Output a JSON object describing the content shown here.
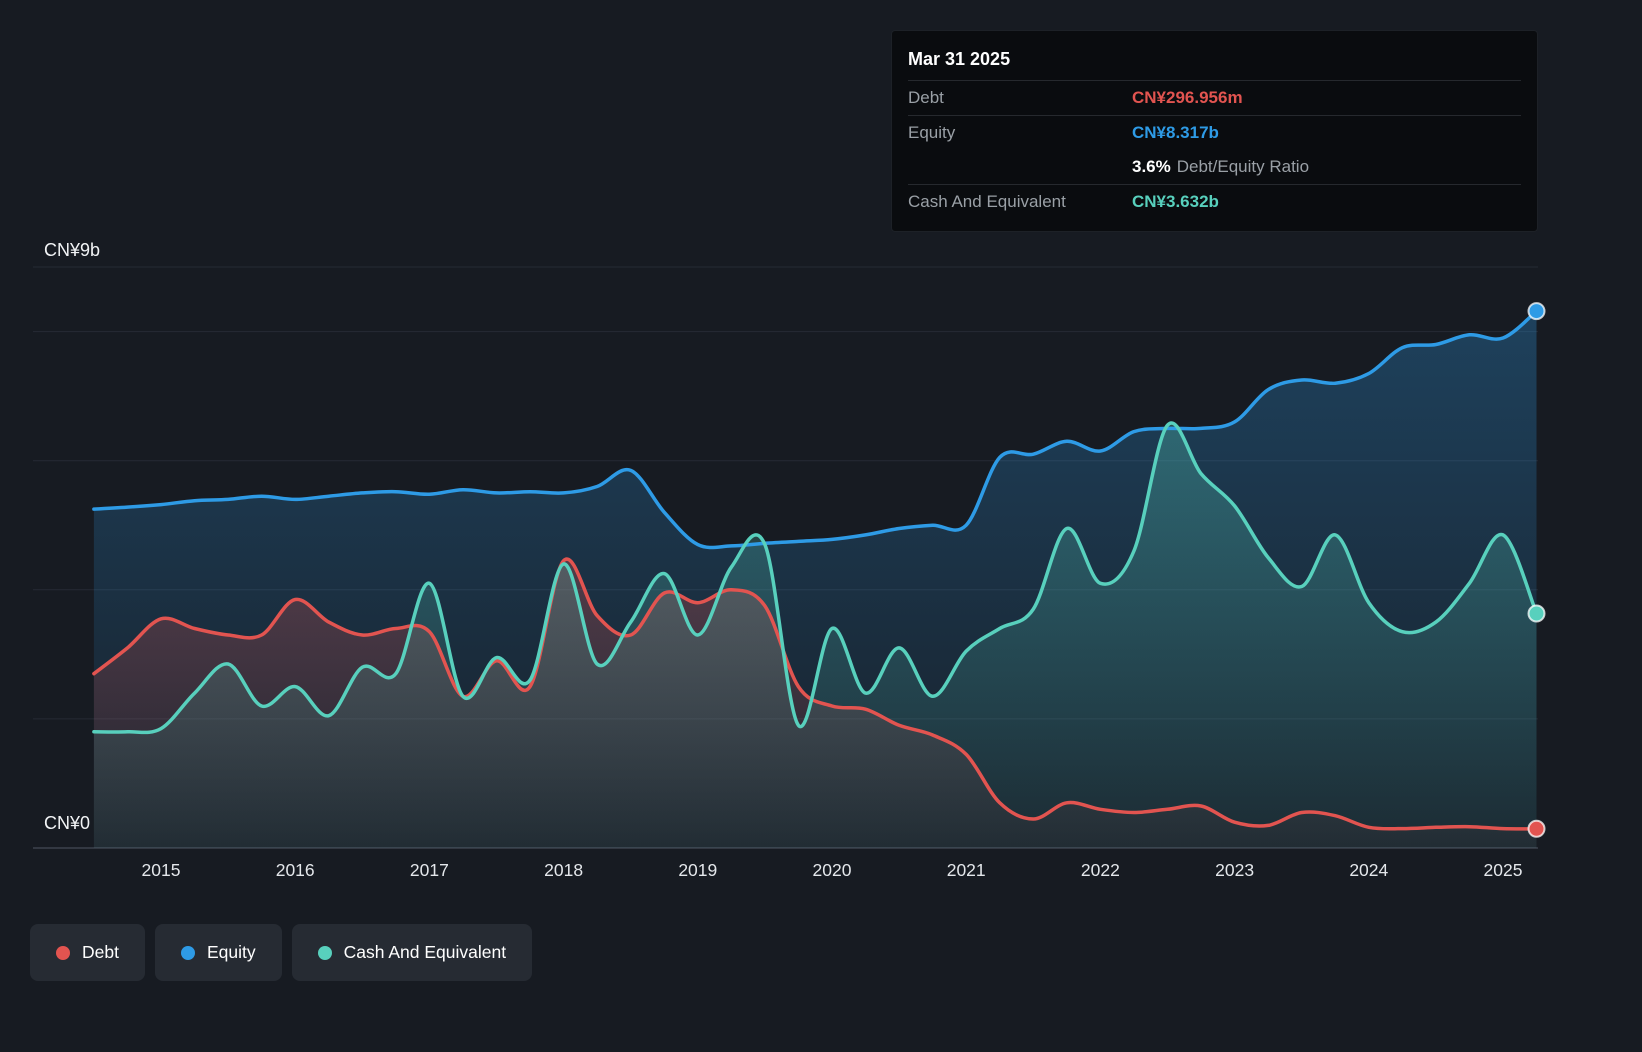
{
  "tooltip": {
    "date": "Mar 31 2025",
    "debt_label": "Debt",
    "debt_value": "CN¥296.956m",
    "equity_label": "Equity",
    "equity_value": "CN¥8.317b",
    "ratio_value": "3.6%",
    "ratio_label": "Debt/Equity Ratio",
    "cash_label": "Cash And Equivalent",
    "cash_value": "CN¥3.632b"
  },
  "legend": {
    "debt": {
      "label": "Debt",
      "color": "#e25450"
    },
    "equity": {
      "label": "Equity",
      "color": "#2e9be6"
    },
    "cash": {
      "label": "Cash And Equivalent",
      "color": "#58d0bd"
    }
  },
  "chart_data": {
    "type": "area",
    "title": "Debt, Equity and Cash history",
    "units": "CN¥ billions",
    "ylim": [
      0,
      9
    ],
    "y_axis_labels": {
      "top": "CN¥9b",
      "bottom": "CN¥0"
    },
    "grid_values": [
      2,
      4,
      6,
      8,
      9
    ],
    "x_ticks": [
      "2015",
      "2016",
      "2017",
      "2018",
      "2019",
      "2020",
      "2021",
      "2022",
      "2023",
      "2024",
      "2025"
    ],
    "x_range": [
      2014.5,
      2025.25
    ],
    "x": [
      2014.5,
      2014.75,
      2015.0,
      2015.25,
      2015.5,
      2015.75,
      2016.0,
      2016.25,
      2016.5,
      2016.75,
      2017.0,
      2017.25,
      2017.5,
      2017.75,
      2018.0,
      2018.25,
      2018.5,
      2018.75,
      2019.0,
      2019.25,
      2019.5,
      2019.75,
      2020.0,
      2020.25,
      2020.5,
      2020.75,
      2021.0,
      2021.25,
      2021.5,
      2021.75,
      2022.0,
      2022.25,
      2022.5,
      2022.75,
      2023.0,
      2023.25,
      2023.5,
      2023.75,
      2024.0,
      2024.25,
      2024.5,
      2024.75,
      2025.0,
      2025.25
    ],
    "series": [
      {
        "name": "Debt",
        "color": "#e25450",
        "fill_top_opacity": 0.28,
        "fill_bottom_opacity": 0.03,
        "values": [
          2.7,
          3.1,
          3.55,
          3.4,
          3.3,
          3.3,
          3.85,
          3.5,
          3.3,
          3.4,
          3.35,
          2.35,
          2.9,
          2.5,
          4.45,
          3.6,
          3.3,
          3.95,
          3.8,
          4.0,
          3.75,
          2.5,
          2.2,
          2.15,
          1.9,
          1.75,
          1.45,
          0.7,
          0.45,
          0.7,
          0.6,
          0.55,
          0.6,
          0.65,
          0.4,
          0.35,
          0.55,
          0.5,
          0.32,
          0.3,
          0.32,
          0.33,
          0.3,
          0.297
        ]
      },
      {
        "name": "Equity",
        "color": "#2e9be6",
        "fill_top_opacity": 0.3,
        "fill_bottom_opacity": 0.04,
        "values": [
          5.25,
          5.28,
          5.32,
          5.38,
          5.4,
          5.45,
          5.4,
          5.45,
          5.5,
          5.52,
          5.48,
          5.55,
          5.5,
          5.52,
          5.5,
          5.6,
          5.85,
          5.2,
          4.7,
          4.68,
          4.72,
          4.75,
          4.78,
          4.85,
          4.95,
          5.0,
          5.0,
          6.05,
          6.1,
          6.3,
          6.15,
          6.45,
          6.5,
          6.5,
          6.6,
          7.1,
          7.25,
          7.2,
          7.35,
          7.75,
          7.8,
          7.95,
          7.9,
          8.317
        ]
      },
      {
        "name": "Cash And Equivalent",
        "color": "#58d0bd",
        "fill_top_opacity": 0.3,
        "fill_bottom_opacity": 0.06,
        "values": [
          1.8,
          1.8,
          1.85,
          2.4,
          2.85,
          2.2,
          2.5,
          2.05,
          2.8,
          2.7,
          4.1,
          2.35,
          2.95,
          2.6,
          4.4,
          2.85,
          3.5,
          4.25,
          3.3,
          4.35,
          4.7,
          1.9,
          3.4,
          2.4,
          3.1,
          2.35,
          3.05,
          3.4,
          3.7,
          4.95,
          4.1,
          4.6,
          6.55,
          5.8,
          5.3,
          4.5,
          4.05,
          4.85,
          3.8,
          3.35,
          3.5,
          4.1,
          4.85,
          3.632
        ]
      }
    ]
  }
}
